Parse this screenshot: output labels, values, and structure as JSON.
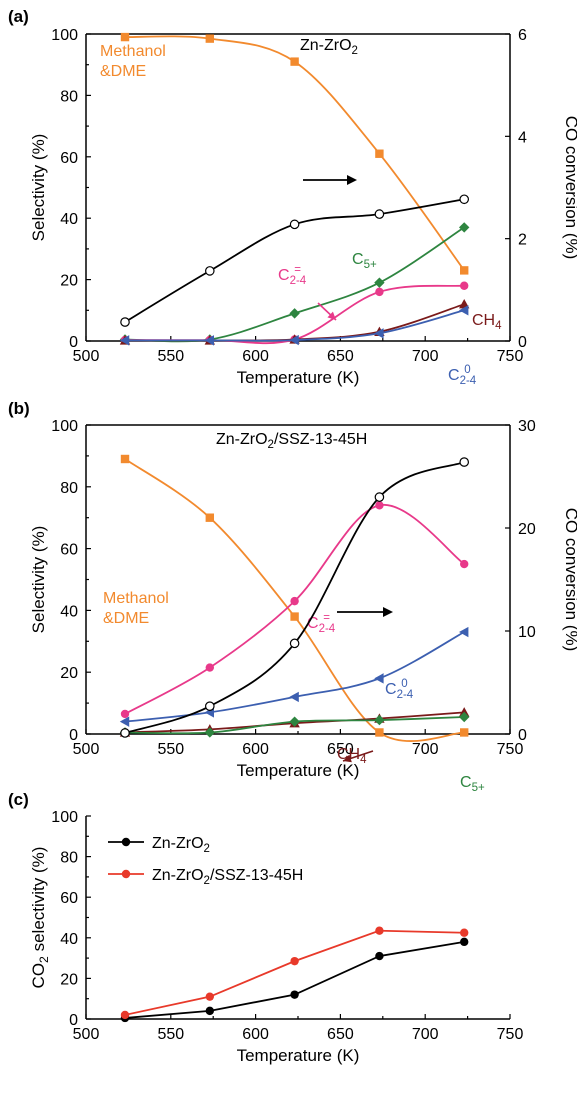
{
  "chart_data": [
    {
      "type": "line",
      "panel": "(a)",
      "title_parts": [
        "Zn-ZrO",
        "2"
      ],
      "xlabel": "Temperature (K)",
      "ylabel": "Selectivity (%)",
      "y2label": "CO conversion (%)",
      "xlim": [
        500,
        750
      ],
      "xticks": [
        "500",
        "550",
        "600",
        "650",
        "700",
        "750"
      ],
      "ylim": [
        0,
        100
      ],
      "yticks": [
        "0",
        "20",
        "40",
        "60",
        "80",
        "100"
      ],
      "y2lim": [
        0,
        6
      ],
      "y2ticks": [
        "0",
        "2",
        "4",
        "6"
      ],
      "x": [
        523,
        573,
        623,
        673,
        723
      ],
      "series": [
        {
          "key": "methanol",
          "label_lines": [
            "Methanol",
            "&DME"
          ],
          "axis": "left",
          "color": "#f28a2e",
          "marker": "square",
          "values": [
            99,
            98.5,
            91,
            61,
            23
          ]
        },
        {
          "key": "c5",
          "label_parts": [
            "C",
            "5+"
          ],
          "axis": "left",
          "color": "#2e8540",
          "marker": "diamond",
          "values": [
            0.5,
            0.5,
            9,
            19,
            37
          ]
        },
        {
          "key": "c24ene",
          "label_parts": [
            "C",
            "2-4",
            "="
          ],
          "axis": "left",
          "color": "#e8398a",
          "marker": "circle",
          "values": [
            0.3,
            0.3,
            0.5,
            16,
            18
          ]
        },
        {
          "key": "ch4",
          "label_parts": [
            "CH",
            "4"
          ],
          "axis": "left",
          "color": "#7a1a1a",
          "marker": "triangle-up",
          "values": [
            0.2,
            0.2,
            0.5,
            3,
            12
          ]
        },
        {
          "key": "c24ane",
          "label_parts": [
            "C",
            "2-4",
            "0"
          ],
          "axis": "left",
          "color": "#3c5fb0",
          "marker": "triangle-left",
          "values": [
            0.2,
            0.2,
            0.3,
            2.5,
            10
          ]
        },
        {
          "key": "co_conv",
          "axis": "right",
          "color": "#000000",
          "marker": "open-circle",
          "values": [
            0.37,
            1.37,
            2.28,
            2.48,
            2.77
          ]
        }
      ]
    },
    {
      "type": "line",
      "panel": "(b)",
      "title_parts": [
        "Zn-ZrO",
        "2",
        "/SSZ-13-45H"
      ],
      "xlabel": "Temperature (K)",
      "ylabel": "Selectivity (%)",
      "y2label": "CO conversion (%)",
      "xlim": [
        500,
        750
      ],
      "xticks": [
        "500",
        "550",
        "600",
        "650",
        "700",
        "750"
      ],
      "ylim": [
        0,
        100
      ],
      "yticks": [
        "0",
        "20",
        "40",
        "60",
        "80",
        "100"
      ],
      "y2lim": [
        0,
        30
      ],
      "y2ticks": [
        "0",
        "10",
        "20",
        "30"
      ],
      "x": [
        523,
        573,
        623,
        673,
        723
      ],
      "series": [
        {
          "key": "methanol",
          "label_lines": [
            "Methanol",
            "&DME"
          ],
          "axis": "left",
          "color": "#f28a2e",
          "marker": "square",
          "values": [
            89,
            70,
            38,
            0.5,
            0.5
          ]
        },
        {
          "key": "c24ene",
          "label_parts": [
            "C",
            "2-4",
            "="
          ],
          "axis": "left",
          "color": "#e8398a",
          "marker": "circle",
          "values": [
            6.5,
            21.5,
            43,
            74,
            55
          ]
        },
        {
          "key": "c24ane",
          "label_parts": [
            "C",
            "2-4",
            "0"
          ],
          "axis": "left",
          "color": "#3c5fb0",
          "marker": "triangle-left",
          "values": [
            4,
            7,
            12,
            18,
            33
          ]
        },
        {
          "key": "ch4",
          "label_parts": [
            "CH",
            "4"
          ],
          "axis": "left",
          "color": "#7a1a1a",
          "marker": "triangle-up",
          "values": [
            0.5,
            1.5,
            3.5,
            5,
            7
          ]
        },
        {
          "key": "c5",
          "label_parts": [
            "C",
            "5+"
          ],
          "axis": "left",
          "color": "#2e8540",
          "marker": "diamond",
          "values": [
            0.5,
            0.5,
            4,
            4.5,
            5.5
          ]
        },
        {
          "key": "co_conv",
          "axis": "right",
          "color": "#000000",
          "marker": "open-circle",
          "values": [
            0.1,
            2.7,
            8.8,
            23,
            26.4
          ]
        }
      ]
    },
    {
      "type": "line",
      "panel": "(c)",
      "xlabel": "Temperature (K)",
      "ylabel_parts": [
        "CO",
        "2",
        " selectivity (%)"
      ],
      "xlim": [
        500,
        750
      ],
      "xticks": [
        "500",
        "550",
        "600",
        "650",
        "700",
        "750"
      ],
      "ylim": [
        0,
        100
      ],
      "yticks": [
        "0",
        "20",
        "40",
        "60",
        "80",
        "100"
      ],
      "legend_position": "top-left",
      "x": [
        523,
        573,
        623,
        673,
        723
      ],
      "series": [
        {
          "key": "znzro2",
          "legend_parts": [
            "Zn-ZrO",
            "2"
          ],
          "color": "#000000",
          "marker": "filled-circle",
          "values": [
            0.5,
            4,
            12,
            31,
            38
          ]
        },
        {
          "key": "znzro2_ssz",
          "legend_parts": [
            "Zn-ZrO",
            "2",
            "/SSZ-13-45H"
          ],
          "color": "#e8392a",
          "marker": "filled-circle",
          "values": [
            2,
            11,
            28.5,
            43.5,
            42.5
          ]
        }
      ]
    }
  ]
}
